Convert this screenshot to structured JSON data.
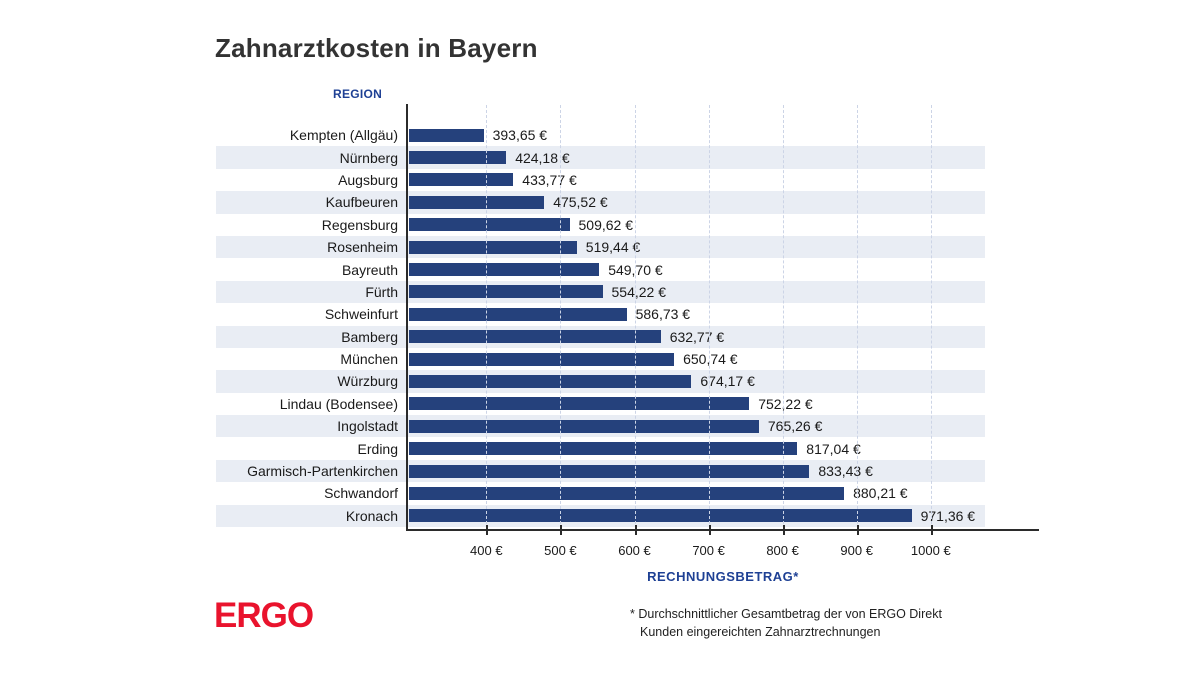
{
  "title": "Zahnarztkosten in Bayern",
  "axis_titles": {
    "y": "REGION",
    "x": "RECHNUNGSBETRAG*"
  },
  "footer": {
    "logo_text": "ERGO",
    "footnote_line1": "* Durchschnittlicher Gesamtbetrag der von ERGO Direkt",
    "footnote_line2": "Kunden eingereichten Zahnarztrechnungen"
  },
  "colors": {
    "bar": "#25417c",
    "stripe": "#e9edf4",
    "blue_label": "#1e4094",
    "logo_red": "#e9132d",
    "grid": "#ccd4e6",
    "axis": "#2b2b2b",
    "title": "#333333",
    "text": "#1a1a1a",
    "bg": "#ffffff"
  },
  "chart_data": {
    "type": "bar",
    "orientation": "horizontal",
    "title": "Zahnarztkosten in Bayern",
    "xlabel": "RECHNUNGSBETRAG*",
    "ylabel": "REGION",
    "categories": [
      "Kempten (Allgäu)",
      "Nürnberg",
      "Augsburg",
      "Kaufbeuren",
      "Regensburg",
      "Rosenheim",
      "Bayreuth",
      "Fürth",
      "Schweinfurt",
      "Bamberg",
      "München",
      "Würzburg",
      "Lindau (Bodensee)",
      "Ingolstadt",
      "Erding",
      "Garmisch-Partenkirchen",
      "Schwandorf",
      "Kronach"
    ],
    "values": [
      393.65,
      424.18,
      433.77,
      475.52,
      509.62,
      519.44,
      549.7,
      554.22,
      586.73,
      632.77,
      650.74,
      674.17,
      752.22,
      765.26,
      817.04,
      833.43,
      880.21,
      971.36
    ],
    "value_labels": [
      "393,65 €",
      "424,18 €",
      "433,77 €",
      "475,52 €",
      "509,62 €",
      "519,44 €",
      "549,70 €",
      "554,22 €",
      "586,73 €",
      "632,77 €",
      "650,74 €",
      "674,17 €",
      "752,22 €",
      "765,26 €",
      "817,04 €",
      "833,43 €",
      "880,21 €",
      "971,36 €"
    ],
    "x_ticks": [
      400,
      500,
      600,
      700,
      800,
      900,
      1000
    ],
    "x_tick_labels": [
      "400 €",
      "500 €",
      "600 €",
      "700 €",
      "800 €",
      "900 €",
      "1000 €"
    ],
    "xlim": [
      293,
      1146
    ],
    "grid": "vertical dashed lines at each tick",
    "row_striping": "every second row shaded",
    "legend": "none",
    "sort_order": "ascending by value"
  }
}
